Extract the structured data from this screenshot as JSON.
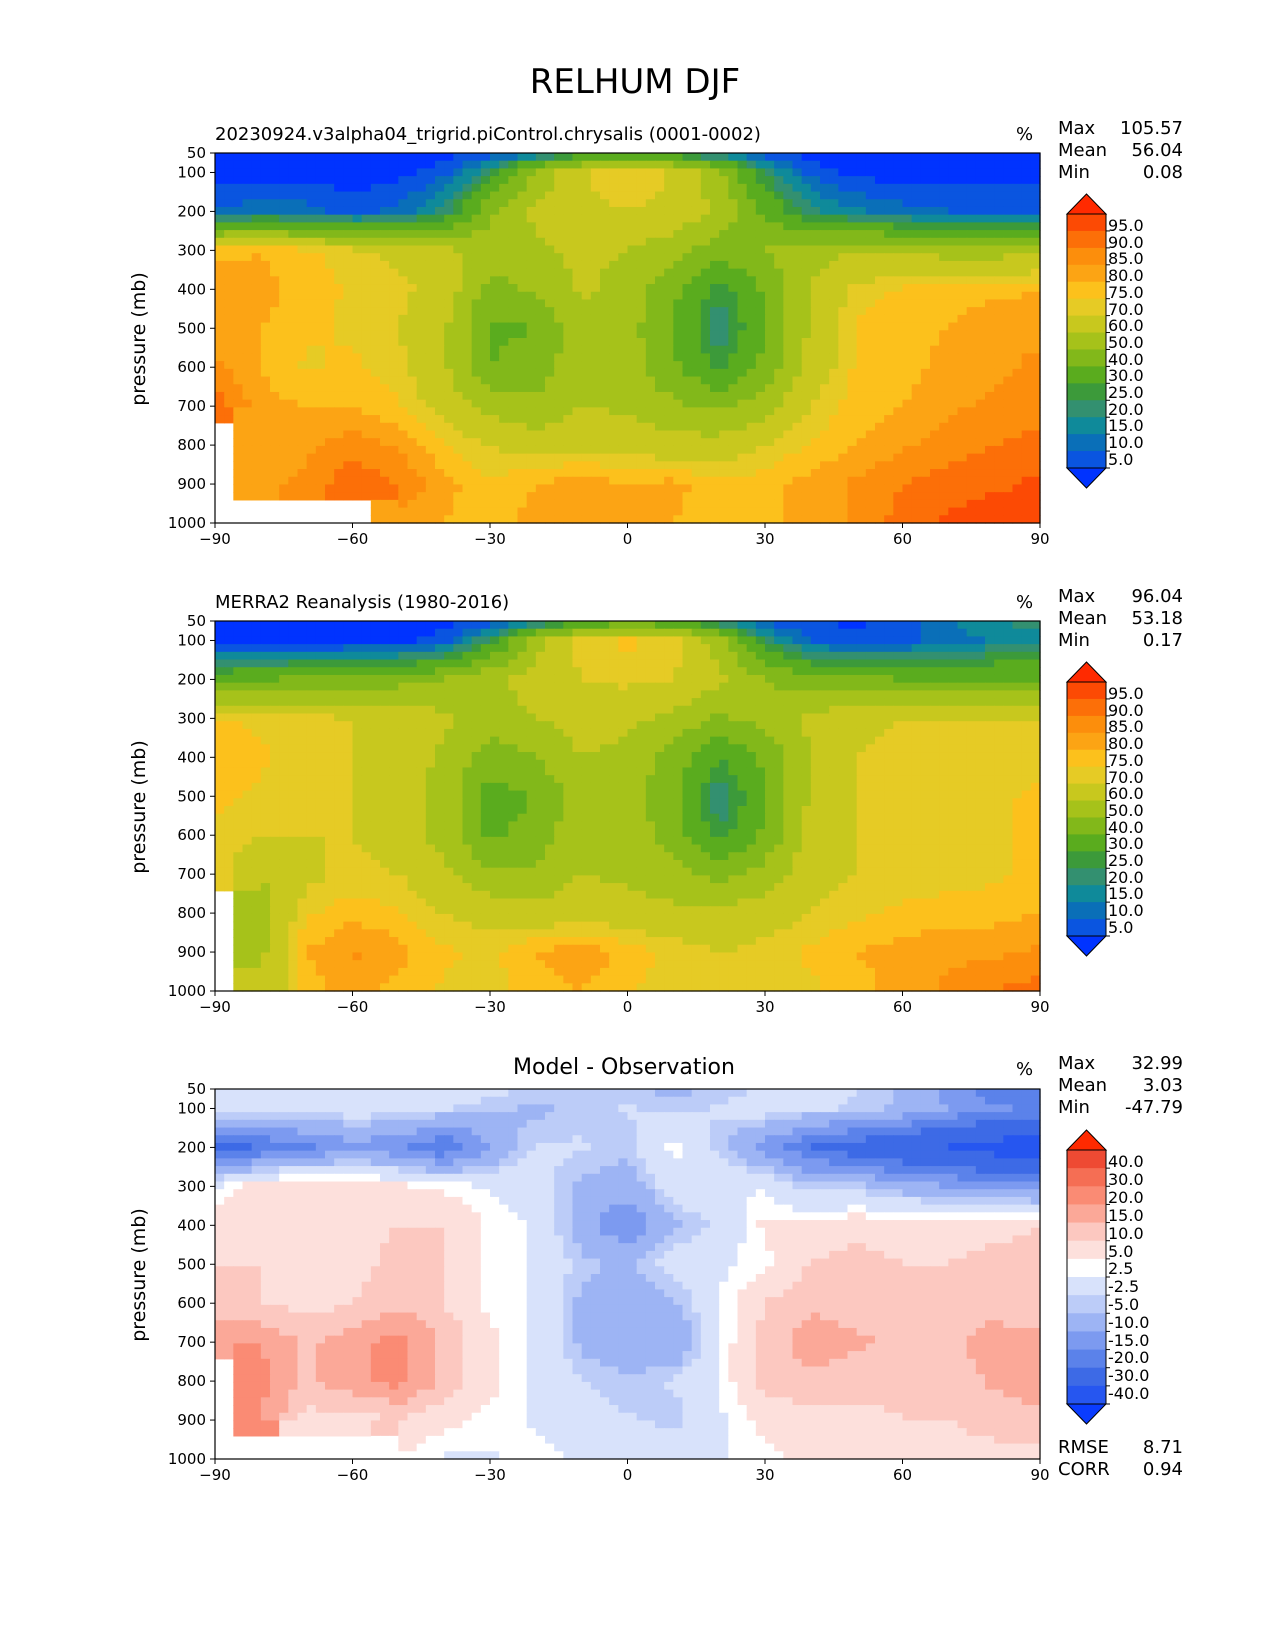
{
  "figure": {
    "title": "RELHUM DJF"
  },
  "colors": {
    "rh_levels": [
      "#0033ff",
      "#0a55e0",
      "#0a6fb8",
      "#0f8a9a",
      "#339070",
      "#3c9a3a",
      "#5aac1e",
      "#82b81a",
      "#a6c21a",
      "#c8c81e",
      "#e6cb25",
      "#fcc11c",
      "#fca414",
      "#fc8e0c",
      "#fc6f08",
      "#fc4a04",
      "#ff2a00"
    ],
    "diff_levels": [
      "#0a3cff",
      "#2656f0",
      "#3d6ae6",
      "#5b82ea",
      "#7c9af0",
      "#9db4f4",
      "#bcccf8",
      "#d8e2fb",
      "#ffffff",
      "#fde0dc",
      "#fcc8c0",
      "#fba898",
      "#fa8b74",
      "#f56e54",
      "#ee4a33",
      "#ff2a00"
    ]
  },
  "panels": [
    {
      "title": "20230924.v3alpha04_trigrid.piControl.chrysalis (0001-0002)",
      "units": "%",
      "ylabel": "pressure (mb)",
      "stats": [
        {
          "label": "Max",
          "value": "105.57"
        },
        {
          "label": "Mean",
          "value": "56.04"
        },
        {
          "label": "Min",
          "value": "0.08"
        }
      ],
      "colorbar_labels": [
        "95.0",
        "90.0",
        "85.0",
        "80.0",
        "75.0",
        "70.0",
        "60.0",
        "50.0",
        "40.0",
        "30.0",
        "25.0",
        "20.0",
        "15.0",
        "10.0",
        "5.0"
      ]
    },
    {
      "title": "MERRA2 Reanalysis (1980-2016)",
      "units": "%",
      "ylabel": "pressure (mb)",
      "stats": [
        {
          "label": "Max",
          "value": "96.04"
        },
        {
          "label": "Mean",
          "value": "53.18"
        },
        {
          "label": "Min",
          "value": "0.17"
        }
      ],
      "colorbar_labels": [
        "95.0",
        "90.0",
        "85.0",
        "80.0",
        "75.0",
        "70.0",
        "60.0",
        "50.0",
        "40.0",
        "30.0",
        "25.0",
        "20.0",
        "15.0",
        "10.0",
        "5.0"
      ]
    },
    {
      "title": "Model - Observation",
      "units": "%",
      "ylabel": "pressure (mb)",
      "stats": [
        {
          "label": "Max",
          "value": "32.99"
        },
        {
          "label": "Mean",
          "value": "3.03"
        },
        {
          "label": "Min",
          "value": "-47.79"
        }
      ],
      "metrics": [
        {
          "label": "RMSE",
          "value": "8.71"
        },
        {
          "label": "CORR",
          "value": "0.94"
        }
      ],
      "colorbar_labels": [
        "40.0",
        "30.0",
        "20.0",
        "15.0",
        "10.0",
        "5.0",
        "2.5",
        "-2.5",
        "-5.0",
        "-10.0",
        "-15.0",
        "-20.0",
        "-30.0",
        "-40.0"
      ]
    }
  ],
  "chart_data": [
    {
      "type": "heatmap",
      "title": "20230924.v3alpha04_trigrid.piControl.chrysalis (0001-0002)",
      "ylabel": "pressure (mb)",
      "units": "%",
      "x_ticks": [
        -90,
        -60,
        -30,
        0,
        30,
        60,
        90
      ],
      "y_ticks": [
        50,
        100,
        200,
        300,
        400,
        500,
        600,
        700,
        800,
        900,
        1000
      ],
      "xlim": [
        -90,
        90
      ],
      "ylim": [
        1000,
        50
      ],
      "levels": [
        5,
        10,
        15,
        20,
        25,
        30,
        40,
        50,
        60,
        70,
        75,
        80,
        85,
        90,
        95
      ],
      "lat": [
        -90,
        -80,
        -70,
        -60,
        -50,
        -40,
        -30,
        -20,
        -10,
        0,
        10,
        20,
        30,
        40,
        50,
        60,
        70,
        80,
        90
      ],
      "plev": [
        50,
        100,
        200,
        300,
        400,
        500,
        600,
        700,
        800,
        900,
        1000
      ],
      "values": [
        [
          2,
          2,
          2,
          2,
          2,
          3,
          6,
          12,
          22,
          30,
          24,
          14,
          6,
          3,
          2,
          2,
          2,
          2,
          2
        ],
        [
          2,
          2,
          2,
          2,
          3,
          8,
          24,
          52,
          70,
          74,
          70,
          52,
          24,
          8,
          3,
          2,
          2,
          2,
          2
        ],
        [
          10,
          14,
          12,
          8,
          12,
          22,
          48,
          62,
          68,
          70,
          68,
          58,
          38,
          22,
          16,
          12,
          10,
          10,
          10
        ],
        [
          78,
          80,
          76,
          72,
          68,
          62,
          56,
          58,
          62,
          60,
          54,
          44,
          50,
          56,
          60,
          58,
          56,
          56,
          58
        ],
        [
          84,
          82,
          78,
          74,
          72,
          66,
          46,
          52,
          62,
          56,
          42,
          26,
          42,
          60,
          72,
          76,
          78,
          78,
          80
        ],
        [
          84,
          80,
          76,
          74,
          70,
          62,
          38,
          40,
          56,
          54,
          40,
          20,
          38,
          62,
          76,
          78,
          80,
          84,
          84
        ],
        [
          86,
          80,
          74,
          76,
          72,
          62,
          40,
          44,
          58,
          54,
          42,
          28,
          44,
          64,
          76,
          78,
          82,
          84,
          86
        ],
        [
          94,
          82,
          80,
          80,
          76,
          66,
          56,
          52,
          60,
          58,
          52,
          48,
          56,
          70,
          78,
          80,
          84,
          86,
          88
        ],
        [
          null,
          84,
          84,
          88,
          84,
          76,
          70,
          66,
          68,
          66,
          64,
          64,
          70,
          76,
          80,
          84,
          88,
          90,
          92
        ],
        [
          null,
          84,
          86,
          94,
          90,
          82,
          76,
          80,
          84,
          80,
          82,
          76,
          78,
          82,
          86,
          90,
          92,
          94,
          96
        ],
        [
          null,
          null,
          null,
          null,
          82,
          80,
          78,
          82,
          84,
          82,
          80,
          76,
          78,
          82,
          86,
          92,
          96,
          98,
          98
        ]
      ]
    },
    {
      "type": "heatmap",
      "title": "MERRA2 Reanalysis (1980-2016)",
      "ylabel": "pressure (mb)",
      "units": "%",
      "x_ticks": [
        -90,
        -60,
        -30,
        0,
        30,
        60,
        90
      ],
      "y_ticks": [
        50,
        100,
        200,
        300,
        400,
        500,
        600,
        700,
        800,
        900,
        1000
      ],
      "xlim": [
        -90,
        90
      ],
      "ylim": [
        1000,
        50
      ],
      "levels": [
        5,
        10,
        15,
        20,
        25,
        30,
        40,
        50,
        60,
        70,
        75,
        80,
        85,
        90,
        95
      ],
      "lat": [
        -90,
        -80,
        -70,
        -60,
        -50,
        -40,
        -30,
        -20,
        -10,
        0,
        10,
        20,
        30,
        40,
        50,
        60,
        70,
        80,
        90
      ],
      "plev": [
        50,
        100,
        200,
        300,
        400,
        500,
        600,
        700,
        800,
        900,
        1000
      ],
      "values": [
        [
          2,
          2,
          2,
          2,
          2,
          3,
          6,
          14,
          26,
          34,
          30,
          18,
          8,
          5,
          4,
          8,
          14,
          20,
          22
        ],
        [
          2,
          2,
          2,
          2,
          3,
          8,
          26,
          56,
          74,
          76,
          74,
          54,
          24,
          10,
          6,
          8,
          12,
          16,
          18
        ],
        [
          36,
          40,
          42,
          44,
          46,
          50,
          58,
          64,
          70,
          72,
          70,
          62,
          50,
          44,
          42,
          40,
          40,
          40,
          40
        ],
        [
          76,
          74,
          72,
          70,
          68,
          62,
          56,
          60,
          64,
          62,
          58,
          48,
          54,
          62,
          68,
          70,
          70,
          70,
          70
        ],
        [
          78,
          76,
          72,
          70,
          66,
          58,
          44,
          50,
          60,
          58,
          46,
          30,
          42,
          60,
          70,
          72,
          72,
          72,
          74
        ],
        [
          76,
          74,
          70,
          70,
          66,
          56,
          36,
          40,
          56,
          54,
          42,
          20,
          38,
          62,
          70,
          72,
          72,
          74,
          76
        ],
        [
          74,
          70,
          70,
          70,
          66,
          56,
          38,
          44,
          58,
          56,
          46,
          26,
          42,
          64,
          70,
          72,
          72,
          74,
          76
        ],
        [
          74,
          60,
          68,
          72,
          70,
          62,
          52,
          52,
          60,
          58,
          54,
          46,
          54,
          66,
          70,
          72,
          72,
          74,
          76
        ],
        [
          null,
          56,
          74,
          78,
          76,
          70,
          66,
          64,
          66,
          64,
          62,
          62,
          66,
          70,
          74,
          76,
          78,
          78,
          80
        ],
        [
          null,
          58,
          80,
          86,
          82,
          76,
          74,
          80,
          84,
          78,
          74,
          70,
          72,
          76,
          80,
          82,
          84,
          84,
          86
        ],
        [
          null,
          60,
          78,
          82,
          78,
          74,
          72,
          78,
          80,
          76,
          72,
          70,
          72,
          74,
          78,
          82,
          86,
          90,
          92
        ]
      ]
    },
    {
      "type": "heatmap",
      "title": "Model - Observation",
      "ylabel": "pressure (mb)",
      "units": "%",
      "x_ticks": [
        -90,
        -60,
        -30,
        0,
        30,
        60,
        90
      ],
      "y_ticks": [
        50,
        100,
        200,
        300,
        400,
        500,
        600,
        700,
        800,
        900,
        1000
      ],
      "xlim": [
        -90,
        90
      ],
      "ylim": [
        1000,
        50
      ],
      "levels": [
        -40,
        -30,
        -20,
        -15,
        -10,
        -5,
        -2.5,
        2.5,
        5,
        10,
        15,
        20,
        30,
        40
      ],
      "lat": [
        -90,
        -80,
        -70,
        -60,
        -50,
        -40,
        -30,
        -20,
        -10,
        0,
        10,
        20,
        30,
        40,
        50,
        60,
        70,
        80,
        90
      ],
      "plev": [
        50,
        100,
        200,
        300,
        400,
        500,
        600,
        700,
        800,
        900,
        1000
      ],
      "values": [
        [
          0,
          0,
          0,
          0,
          0,
          0,
          -1,
          -3,
          -4,
          -4,
          -6,
          -4,
          -2,
          -2,
          -2,
          -6,
          -12,
          -18,
          -20
        ],
        [
          0,
          0,
          0,
          0,
          0,
          -2,
          -4,
          -6,
          -4,
          -2,
          -4,
          -2,
          0,
          -2,
          -3,
          -6,
          -10,
          -14,
          -16
        ],
        [
          -22,
          -20,
          -16,
          -12,
          -14,
          -20,
          -10,
          -2,
          -2,
          -4,
          4,
          -4,
          -12,
          -20,
          -24,
          -28,
          -30,
          -34,
          -36
        ],
        [
          2,
          8,
          10,
          8,
          6,
          4,
          2,
          0,
          -6,
          -8,
          0,
          2,
          2,
          -4,
          -4,
          -8,
          -10,
          -12,
          -14
        ],
        [
          8,
          8,
          10,
          8,
          10,
          10,
          4,
          2,
          -8,
          -14,
          -6,
          -2,
          6,
          6,
          8,
          8,
          8,
          8,
          10
        ],
        [
          10,
          10,
          8,
          8,
          12,
          10,
          4,
          2,
          -4,
          -6,
          0,
          2,
          4,
          10,
          12,
          10,
          10,
          12,
          12
        ],
        [
          12,
          10,
          8,
          10,
          14,
          10,
          4,
          2,
          -6,
          -10,
          -6,
          2,
          10,
          14,
          12,
          10,
          12,
          12,
          12
        ],
        [
          18,
          20,
          14,
          18,
          22,
          14,
          6,
          2,
          -6,
          -10,
          -10,
          2,
          12,
          18,
          16,
          14,
          14,
          18,
          16
        ],
        [
          null,
          22,
          14,
          18,
          22,
          14,
          6,
          2,
          -2,
          -4,
          -2,
          2,
          12,
          14,
          12,
          12,
          12,
          16,
          18
        ],
        [
          null,
          20,
          8,
          8,
          10,
          6,
          4,
          2,
          -2,
          -2,
          -4,
          2,
          6,
          8,
          8,
          10,
          10,
          12,
          14
        ],
        [
          null,
          null,
          null,
          null,
          4,
          2,
          2,
          4,
          2,
          2,
          2,
          2,
          4,
          6,
          8,
          8,
          8,
          8,
          8
        ]
      ]
    }
  ]
}
